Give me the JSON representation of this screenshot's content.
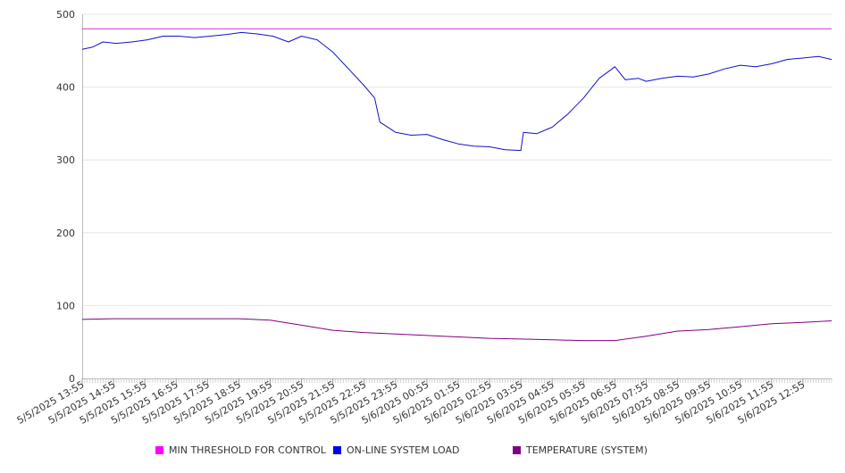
{
  "chart_data": {
    "type": "line",
    "title": "",
    "xlabel": "",
    "ylabel": "",
    "ylim": [
      0,
      500
    ],
    "y_ticks": [
      "0",
      "100",
      "200",
      "300",
      "400",
      "500"
    ],
    "x_tick_labels": [
      "5/5/2025 13:55",
      "5/5/2025 14:55",
      "5/5/2025 15:55",
      "5/5/2025 16:55",
      "5/5/2025 17:55",
      "5/5/2025 18:55",
      "5/5/2025 19:55",
      "5/5/2025 20:55",
      "5/5/2025 21:55",
      "5/5/2025 22:55",
      "5/5/2025 23:55",
      "5/6/2025 00:55",
      "5/6/2025 01:55",
      "5/6/2025 02:55",
      "5/6/2025 03:55",
      "5/6/2025 04:55",
      "5/6/2025 05:55",
      "5/6/2025 06:55",
      "5/6/2025 07:55",
      "5/6/2025 08:55",
      "5/6/2025 09:55",
      "5/6/2025 10:55",
      "5/6/2025 11:55",
      "5/6/2025 12:55"
    ],
    "x_range": [
      "5/5/2025 13:55",
      "5/6/2025 13:50"
    ],
    "grid": true,
    "legend_position": "bottom",
    "series": [
      {
        "name": "MIN THRESHOLD FOR CONTROL",
        "color": "#cc33cc",
        "x": [
          "5/5/2025 13:55",
          "5/6/2025 13:50"
        ],
        "values": [
          480,
          480
        ]
      },
      {
        "name": "ON-LINE SYSTEM LOAD",
        "color": "#1111cc",
        "x": [
          "5/5/2025 13:55",
          "5/5/2025 14:15",
          "5/5/2025 14:35",
          "5/5/2025 15:00",
          "5/5/2025 15:30",
          "5/5/2025 16:00",
          "5/5/2025 16:30",
          "5/5/2025 17:00",
          "5/5/2025 17:30",
          "5/5/2025 18:00",
          "5/5/2025 18:30",
          "5/5/2025 19:00",
          "5/5/2025 19:30",
          "5/5/2025 20:00",
          "5/5/2025 20:30",
          "5/5/2025 20:55",
          "5/5/2025 21:25",
          "5/5/2025 21:55",
          "5/5/2025 22:25",
          "5/5/2025 22:55",
          "5/5/2025 23:15",
          "5/5/2025 23:25",
          "5/5/2025 23:55",
          "5/6/2025 00:25",
          "5/6/2025 00:55",
          "5/6/2025 01:25",
          "5/6/2025 01:55",
          "5/6/2025 02:25",
          "5/6/2025 02:55",
          "5/6/2025 03:25",
          "5/6/2025 03:55",
          "5/6/2025 04:00",
          "5/6/2025 04:25",
          "5/6/2025 04:55",
          "5/6/2025 05:25",
          "5/6/2025 05:55",
          "5/6/2025 06:25",
          "5/6/2025 06:55",
          "5/6/2025 07:15",
          "5/6/2025 07:40",
          "5/6/2025 07:55",
          "5/6/2025 08:25",
          "5/6/2025 08:55",
          "5/6/2025 09:25",
          "5/6/2025 09:55",
          "5/6/2025 10:25",
          "5/6/2025 10:55",
          "5/6/2025 11:25",
          "5/6/2025 11:55",
          "5/6/2025 12:25",
          "5/6/2025 12:55",
          "5/6/2025 13:25",
          "5/6/2025 13:50"
        ],
        "values": [
          452,
          455,
          462,
          460,
          462,
          465,
          470,
          470,
          468,
          470,
          472,
          475,
          473,
          470,
          462,
          470,
          465,
          448,
          425,
          402,
          385,
          352,
          338,
          334,
          335,
          328,
          322,
          319,
          318,
          314,
          313,
          338,
          336,
          345,
          363,
          385,
          412,
          428,
          410,
          412,
          408,
          412,
          415,
          414,
          418,
          425,
          430,
          428,
          432,
          438,
          440,
          442,
          438
        ]
      },
      {
        "name": "TEMPERATURE (SYSTEM)",
        "color": "#800080",
        "x": [
          "5/5/2025 13:55",
          "5/5/2025 14:55",
          "5/5/2025 15:55",
          "5/5/2025 16:55",
          "5/5/2025 17:55",
          "5/5/2025 18:55",
          "5/5/2025 19:55",
          "5/5/2025 20:55",
          "5/5/2025 21:55",
          "5/5/2025 22:55",
          "5/5/2025 23:55",
          "5/6/2025 00:55",
          "5/6/2025 01:55",
          "5/6/2025 02:55",
          "5/6/2025 03:55",
          "5/6/2025 04:55",
          "5/6/2025 05:55",
          "5/6/2025 06:55",
          "5/6/2025 07:55",
          "5/6/2025 08:55",
          "5/6/2025 09:55",
          "5/6/2025 10:55",
          "5/6/2025 11:55",
          "5/6/2025 12:55",
          "5/6/2025 13:50"
        ],
        "values": [
          81,
          82,
          82,
          82,
          82,
          82,
          80,
          73,
          66,
          63,
          61,
          59,
          57,
          55,
          54,
          53,
          52,
          52,
          58,
          65,
          67,
          71,
          75,
          77,
          79
        ]
      }
    ]
  }
}
